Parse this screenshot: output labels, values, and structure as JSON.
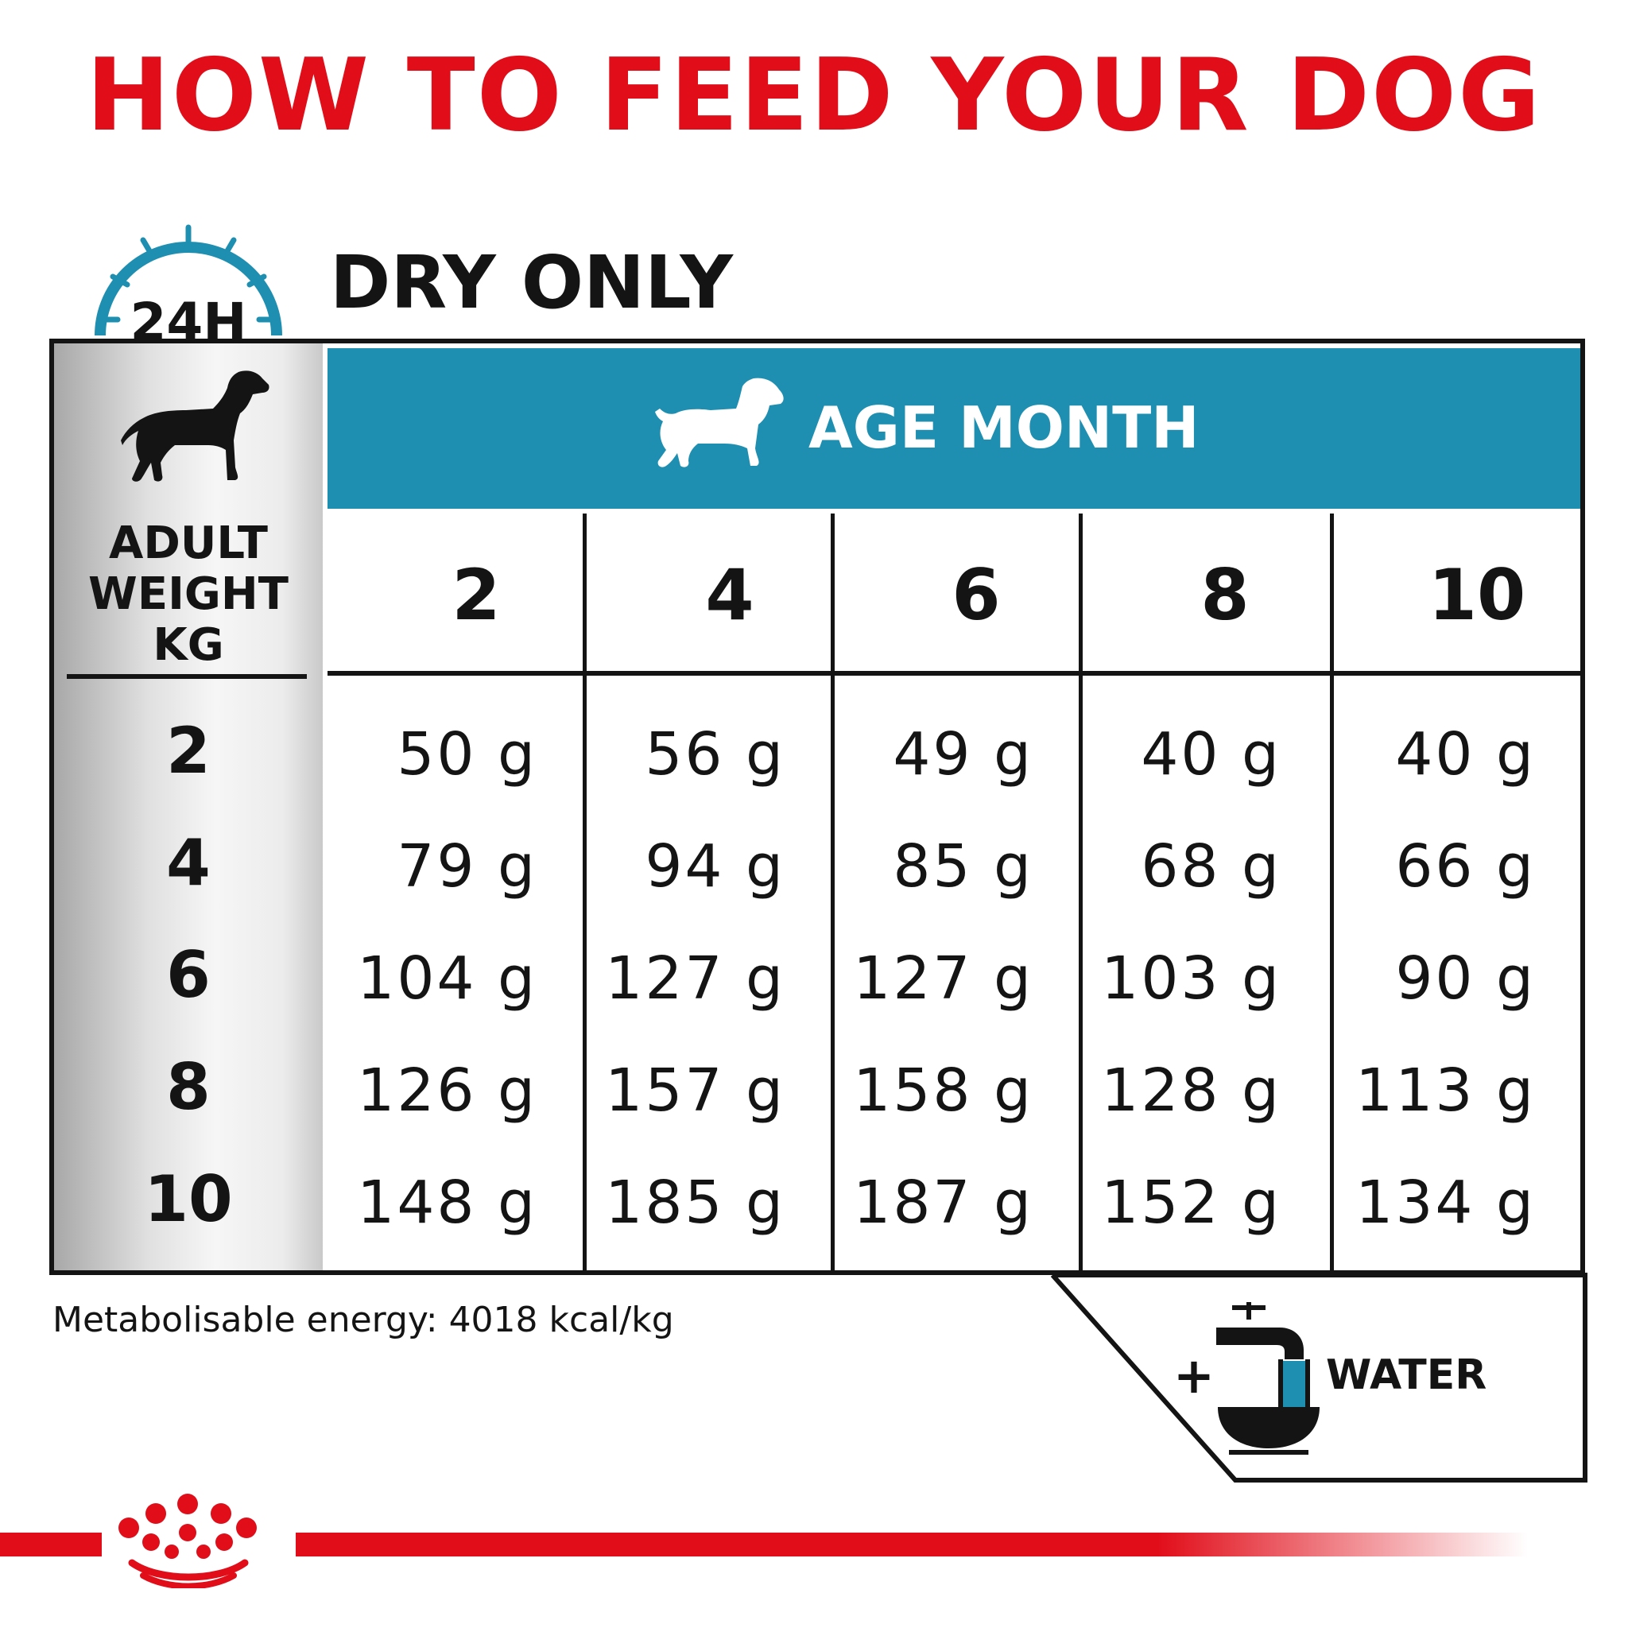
{
  "title": "HOW TO FEED YOUR DOG",
  "clock_label": "24H",
  "subtitle": "DRY ONLY",
  "table": {
    "weight_header": [
      "ADULT",
      "WEIGHT",
      "KG"
    ],
    "age_header": "AGE MONTH",
    "age_columns": [
      "2",
      "4",
      "6",
      "8",
      "10"
    ],
    "rows": [
      {
        "weight": "2",
        "values": [
          "50 g",
          "56 g",
          "49 g",
          "40 g",
          "40 g"
        ]
      },
      {
        "weight": "4",
        "values": [
          "79 g",
          "94 g",
          "85 g",
          "68 g",
          "66 g"
        ]
      },
      {
        "weight": "6",
        "values": [
          "104 g",
          "127 g",
          "127 g",
          "103 g",
          "90 g"
        ]
      },
      {
        "weight": "8",
        "values": [
          "126 g",
          "157 g",
          "158 g",
          "128 g",
          "113 g"
        ]
      },
      {
        "weight": "10",
        "values": [
          "148 g",
          "185 g",
          "187 g",
          "152 g",
          "134 g"
        ]
      }
    ]
  },
  "footnote": "Metabolisable energy: 4018 kcal/kg",
  "water": {
    "plus": "+",
    "label": "WATER"
  },
  "colors": {
    "brand_red": "#e10e1a",
    "header_blue": "#1e8fb1",
    "clock_blue": "#1e8fb1"
  },
  "icons": [
    "clock-24h-icon",
    "adult-dog-icon",
    "puppy-icon",
    "water-tap-bowl-icon",
    "royal-canin-crown-logo"
  ]
}
